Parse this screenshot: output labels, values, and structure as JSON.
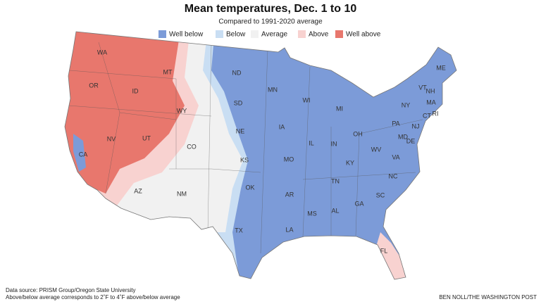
{
  "header": {
    "title": "Mean temperatures, Dec. 1 to 10",
    "subtitle": "Compared to 1991-2020 average"
  },
  "legend": [
    {
      "label": "Well below",
      "color": "#7c9bd8"
    },
    {
      "label": "Below",
      "color": "#c9def3"
    },
    {
      "label": "Average",
      "color": "#f1f1f1"
    },
    {
      "label": "Above",
      "color": "#f8d2d0"
    },
    {
      "label": "Well above",
      "color": "#e8776d"
    }
  ],
  "states": [
    "WA",
    "OR",
    "ID",
    "MT",
    "WY",
    "NV",
    "UT",
    "CO",
    "CA",
    "AZ",
    "NM",
    "ND",
    "SD",
    "NE",
    "KS",
    "OK",
    "TX",
    "MN",
    "IA",
    "MO",
    "AR",
    "LA",
    "WI",
    "IL",
    "MI",
    "IN",
    "OH",
    "KY",
    "TN",
    "MS",
    "AL",
    "GA",
    "FL",
    "SC",
    "NC",
    "VA",
    "WV",
    "PA",
    "NY",
    "MD",
    "DE",
    "NJ",
    "CT",
    "RI",
    "MA",
    "VT",
    "NH",
    "ME"
  ],
  "footer": {
    "source": "Data source: PRISM Group/Oregon State University",
    "note": "Above/below average corresponds to 2˚F to 4˚F above/below average",
    "credit": "BEN NOLL/THE WASHINGTON POST"
  }
}
